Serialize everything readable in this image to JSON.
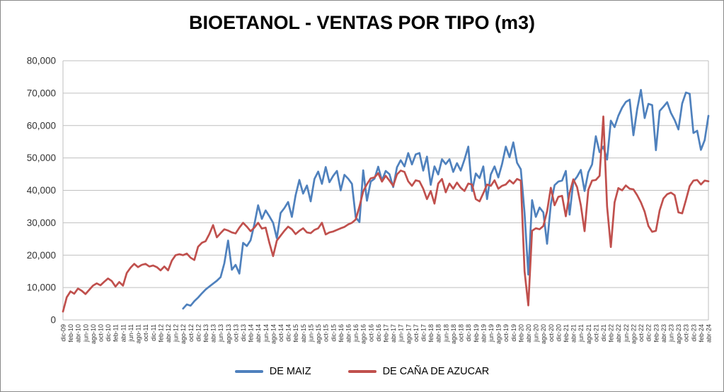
{
  "title": "BIOETANOL - VENTAS POR TIPO (m3)",
  "chart_data": {
    "type": "line",
    "title": "BIOETANOL - VENTAS POR TIPO (m3)",
    "xlabel": "",
    "ylabel": "",
    "ylim": [
      0,
      80000
    ],
    "grid": true,
    "legend_position": "bottom",
    "x_tick_step": 2,
    "y_ticks": [
      "0",
      "10,000",
      "20,000",
      "30,000",
      "40,000",
      "50,000",
      "60,000",
      "70,000",
      "80,000"
    ],
    "colors": {
      "grid": "#bfbfbf",
      "tick_text": "#333333",
      "title_text": "#000000",
      "maiz": "#4F81BD",
      "cana": "#C0504D"
    },
    "x": [
      "dic-09",
      "ene-10",
      "feb-10",
      "mar-10",
      "abr-10",
      "may-10",
      "jun-10",
      "jul-10",
      "ago-10",
      "sep-10",
      "oct-10",
      "nov-10",
      "dic-10",
      "ene-11",
      "feb-11",
      "mar-11",
      "abr-11",
      "may-11",
      "jun-11",
      "jul-11",
      "ago-11",
      "sep-11",
      "oct-11",
      "nov-11",
      "dic-11",
      "ene-12",
      "feb-12",
      "mar-12",
      "abr-12",
      "may-12",
      "jun-12",
      "jul-12",
      "ago-12",
      "sep-12",
      "oct-12",
      "nov-12",
      "dic-12",
      "ene-13",
      "feb-13",
      "mar-13",
      "abr-13",
      "may-13",
      "jun-13",
      "jul-13",
      "ago-13",
      "sep-13",
      "oct-13",
      "nov-13",
      "dic-13",
      "ene-14",
      "feb-14",
      "mar-14",
      "abr-14",
      "may-14",
      "jun-14",
      "jul-14",
      "ago-14",
      "sep-14",
      "oct-14",
      "nov-14",
      "dic-14",
      "ene-15",
      "feb-15",
      "mar-15",
      "abr-15",
      "may-15",
      "jun-15",
      "jul-15",
      "ago-15",
      "sep-15",
      "oct-15",
      "nov-15",
      "dic-15",
      "ene-16",
      "feb-16",
      "mar-16",
      "abr-16",
      "may-16",
      "jun-16",
      "jul-16",
      "ago-16",
      "sep-16",
      "oct-16",
      "nov-16",
      "dic-16",
      "ene-17",
      "feb-17",
      "mar-17",
      "abr-17",
      "may-17",
      "jun-17",
      "jul-17",
      "ago-17",
      "sep-17",
      "oct-17",
      "nov-17",
      "dic-17",
      "ene-18",
      "feb-18",
      "mar-18",
      "abr-18",
      "may-18",
      "jun-18",
      "jul-18",
      "ago-18",
      "sep-18",
      "oct-18",
      "nov-18",
      "dic-18",
      "ene-19",
      "feb-19",
      "mar-19",
      "abr-19",
      "may-19",
      "jun-19",
      "jul-19",
      "ago-19",
      "sep-19",
      "oct-19",
      "nov-19",
      "dic-19",
      "ene-20",
      "feb-20",
      "mar-20",
      "abr-20",
      "may-20",
      "jun-20",
      "jul-20",
      "ago-20",
      "sep-20",
      "oct-20",
      "nov-20",
      "dic-20",
      "ene-21",
      "feb-21",
      "mar-21",
      "abr-21",
      "may-21",
      "jun-21",
      "jul-21",
      "ago-21",
      "sep-21",
      "oct-21",
      "nov-21",
      "dic-21",
      "ene-22",
      "feb-22",
      "mar-22",
      "abr-22",
      "may-22",
      "jun-22",
      "jul-22",
      "ago-22",
      "sep-22",
      "oct-22",
      "nov-22",
      "dic-22",
      "ene-23",
      "feb-23",
      "mar-23",
      "abr-23",
      "may-23",
      "jun-23",
      "jul-23",
      "ago-23",
      "sep-23",
      "oct-23",
      "nov-23",
      "dic-23",
      "ene-24",
      "feb-24",
      "mar-24",
      "abr-24"
    ],
    "series": [
      {
        "name": "DE MAIZ",
        "color": "#4F81BD",
        "values": [
          null,
          null,
          null,
          null,
          null,
          null,
          null,
          null,
          null,
          null,
          null,
          null,
          null,
          null,
          null,
          null,
          null,
          null,
          null,
          null,
          null,
          null,
          null,
          null,
          null,
          null,
          null,
          null,
          null,
          null,
          null,
          null,
          3500,
          4800,
          4400,
          5800,
          6900,
          8200,
          9400,
          10300,
          11200,
          12100,
          13200,
          17500,
          24500,
          15500,
          17000,
          14300,
          23800,
          22800,
          24600,
          29500,
          35400,
          31200,
          33800,
          32000,
          30000,
          25200,
          33000,
          34500,
          36400,
          31800,
          38500,
          43200,
          39000,
          41500,
          36600,
          43500,
          45800,
          42000,
          47200,
          42500,
          44500,
          46000,
          40000,
          44800,
          43600,
          42000,
          31700,
          30200,
          46200,
          36800,
          42700,
          43600,
          47300,
          43000,
          46000,
          45000,
          41000,
          47100,
          49300,
          47400,
          51500,
          48000,
          51100,
          51500,
          46100,
          50400,
          41700,
          47400,
          44900,
          49600,
          48100,
          49600,
          45700,
          48400,
          46100,
          49500,
          53500,
          39800,
          45200,
          43800,
          47400,
          37300,
          44900,
          47400,
          44000,
          48100,
          53500,
          50200,
          54800,
          48500,
          46500,
          33000,
          14000,
          37000,
          31800,
          34700,
          33200,
          23500,
          35700,
          41600,
          42700,
          43000,
          46000,
          32500,
          42700,
          44200,
          46300,
          39800,
          45600,
          48000,
          56700,
          51800,
          53500,
          49500,
          61500,
          59500,
          63000,
          65500,
          67300,
          68000,
          57000,
          65000,
          71000,
          62300,
          66700,
          66300,
          52400,
          64500,
          65800,
          67200,
          63900,
          61700,
          58800,
          66800,
          70200,
          69800,
          57700,
          58400,
          52500,
          55500,
          63000
        ]
      },
      {
        "name": "DE CAÑA DE AZUCAR",
        "color": "#C0504D",
        "values": [
          2600,
          7000,
          8800,
          8100,
          9700,
          9000,
          8000,
          9300,
          10600,
          11300,
          10700,
          11800,
          12800,
          12000,
          10300,
          11700,
          10600,
          14500,
          16100,
          17300,
          16300,
          17000,
          17300,
          16500,
          16800,
          16300,
          15300,
          16500,
          15300,
          18300,
          20000,
          20300,
          20000,
          20500,
          19200,
          18500,
          22600,
          23800,
          24300,
          26500,
          29300,
          25500,
          26800,
          28000,
          27600,
          27000,
          26700,
          28500,
          30000,
          28800,
          27400,
          28500,
          30000,
          28200,
          28500,
          23800,
          19700,
          24500,
          26000,
          27500,
          28800,
          28000,
          26500,
          27500,
          28300,
          27000,
          26800,
          27800,
          28300,
          30000,
          26400,
          27000,
          27300,
          27800,
          28300,
          28700,
          29500,
          30000,
          31000,
          35000,
          39700,
          41900,
          43700,
          44000,
          45300,
          42700,
          44500,
          43000,
          41400,
          44900,
          46100,
          45700,
          42800,
          41400,
          43100,
          42800,
          40500,
          37300,
          39800,
          35900,
          42100,
          43500,
          39400,
          42100,
          40500,
          42400,
          40800,
          39800,
          42100,
          41800,
          37300,
          36600,
          39100,
          41800,
          41400,
          43100,
          40500,
          41400,
          41800,
          43100,
          42100,
          43500,
          43000,
          15000,
          4500,
          27500,
          28300,
          28000,
          29000,
          33500,
          40800,
          35400,
          38000,
          38300,
          32000,
          39100,
          43400,
          41000,
          35400,
          27400,
          40200,
          43000,
          43200,
          44500,
          62800,
          35000,
          22500,
          36300,
          40700,
          40000,
          41500,
          40500,
          40300,
          38500,
          36300,
          33400,
          29000,
          27200,
          27500,
          33800,
          37500,
          38800,
          39300,
          38500,
          33200,
          32900,
          37000,
          41300,
          43000,
          43200,
          41800,
          43000,
          42800
        ]
      }
    ]
  },
  "legend": {
    "items": [
      {
        "label": "DE MAIZ",
        "color": "#4F81BD"
      },
      {
        "label": "DE CAÑA DE AZUCAR",
        "color": "#C0504D"
      }
    ]
  }
}
